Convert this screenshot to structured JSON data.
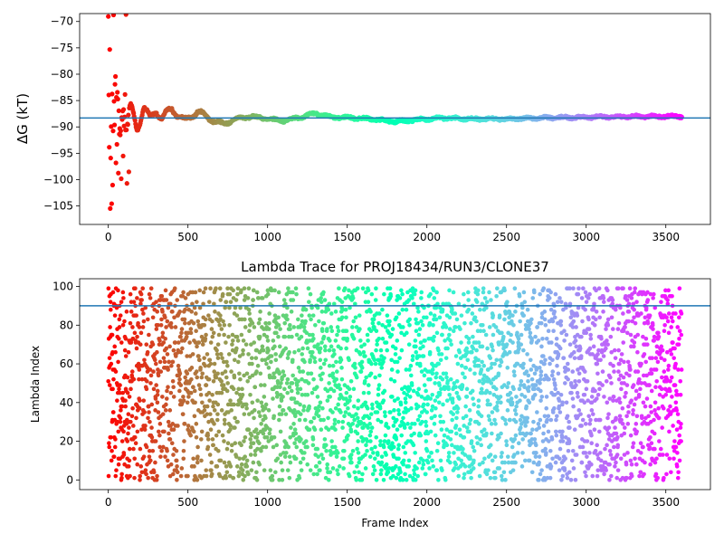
{
  "chart_data": [
    {
      "type": "scatter",
      "title": "",
      "xlabel": "",
      "ylabel": "ΔG (kT)",
      "xlim": [
        -180,
        3780
      ],
      "ylim": [
        -108.5,
        -68.5
      ],
      "xticks": [
        0,
        500,
        1000,
        1500,
        2000,
        2500,
        3000,
        3500
      ],
      "xtick_labels": [
        "0",
        "500",
        "1000",
        "1500",
        "2000",
        "2500",
        "3000",
        "3500"
      ],
      "yticks": [
        -70,
        -75,
        -80,
        -85,
        -90,
        -95,
        -100,
        -105
      ],
      "ytick_labels": [
        "−70",
        "−75",
        "−80",
        "−85",
        "−90",
        "−95",
        "−100",
        "−105"
      ],
      "reference_line": -88.3,
      "reference_line_color": "#1f77b4",
      "colormap": "rainbow",
      "x_range": [
        0,
        3600
      ],
      "grid": false,
      "trace_anchors": [
        {
          "x": 0,
          "y": -70
        },
        {
          "x": 5,
          "y": -100
        },
        {
          "x": 8,
          "y": -80
        },
        {
          "x": 12,
          "y": -106
        },
        {
          "x": 18,
          "y": -90
        },
        {
          "x": 25,
          "y": -82
        },
        {
          "x": 32,
          "y": -95
        },
        {
          "x": 40,
          "y": -76
        },
        {
          "x": 50,
          "y": -101
        },
        {
          "x": 60,
          "y": -84
        },
        {
          "x": 75,
          "y": -92
        },
        {
          "x": 90,
          "y": -86
        },
        {
          "x": 110,
          "y": -90
        },
        {
          "x": 140,
          "y": -87
        },
        {
          "x": 180,
          "y": -90
        },
        {
          "x": 220,
          "y": -86
        },
        {
          "x": 260,
          "y": -89
        },
        {
          "x": 300,
          "y": -86.5
        },
        {
          "x": 340,
          "y": -88.5
        },
        {
          "x": 400,
          "y": -86.5
        },
        {
          "x": 480,
          "y": -89
        },
        {
          "x": 560,
          "y": -87
        },
        {
          "x": 640,
          "y": -88.5
        },
        {
          "x": 720,
          "y": -89.5
        },
        {
          "x": 800,
          "y": -88.5
        },
        {
          "x": 900,
          "y": -88
        },
        {
          "x": 1000,
          "y": -88.5
        },
        {
          "x": 1100,
          "y": -88.8
        },
        {
          "x": 1200,
          "y": -88.2
        },
        {
          "x": 1300,
          "y": -87.4
        },
        {
          "x": 1400,
          "y": -88.2
        },
        {
          "x": 1500,
          "y": -88.2
        },
        {
          "x": 1650,
          "y": -88.5
        },
        {
          "x": 1800,
          "y": -89
        },
        {
          "x": 1950,
          "y": -88.6
        },
        {
          "x": 2100,
          "y": -88.3
        },
        {
          "x": 2300,
          "y": -88.5
        },
        {
          "x": 2500,
          "y": -88.5
        },
        {
          "x": 2700,
          "y": -88.3
        },
        {
          "x": 2900,
          "y": -88.2
        },
        {
          "x": 3100,
          "y": -88.1
        },
        {
          "x": 3300,
          "y": -88
        },
        {
          "x": 3600,
          "y": -88
        }
      ]
    },
    {
      "type": "scatter",
      "title": "Lambda Trace for PROJ18434/RUN3/CLONE37",
      "xlabel": "Frame Index",
      "ylabel": "Lambda Index",
      "xlim": [
        -180,
        3780
      ],
      "ylim": [
        -5,
        104
      ],
      "xticks": [
        0,
        500,
        1000,
        1500,
        2000,
        2500,
        3000,
        3500
      ],
      "xtick_labels": [
        "0",
        "500",
        "1000",
        "1500",
        "2000",
        "2500",
        "3000",
        "3500"
      ],
      "yticks": [
        0,
        20,
        40,
        60,
        80,
        100
      ],
      "ytick_labels": [
        "0",
        "20",
        "40",
        "60",
        "80",
        "100"
      ],
      "reference_line": 90,
      "reference_line_color": "#1f77b4",
      "colormap": "rainbow",
      "x_range": [
        0,
        3600
      ],
      "y_range": [
        0,
        99
      ],
      "frame_count": 3600,
      "grid": false
    }
  ]
}
